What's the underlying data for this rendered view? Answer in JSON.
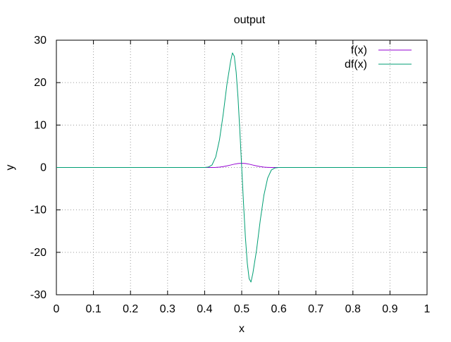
{
  "chart_data": {
    "type": "line",
    "title": "output",
    "xlabel": "x",
    "ylabel": "y",
    "xlim": [
      0,
      1
    ],
    "ylim": [
      -30,
      30
    ],
    "grid": true,
    "legend_position": "top-right",
    "x_ticks": [
      0,
      0.1,
      0.2,
      0.3,
      0.4,
      0.5,
      0.6,
      0.7,
      0.8,
      0.9,
      1
    ],
    "x_tick_labels": [
      "0",
      "0.1",
      "0.2",
      "0.3",
      "0.4",
      "0.5",
      "0.6",
      "0.7",
      "0.8",
      "0.9",
      "1"
    ],
    "y_ticks": [
      -30,
      -20,
      -10,
      0,
      10,
      20,
      30
    ],
    "y_tick_labels": [
      "-30",
      "-20",
      "-10",
      "0",
      "10",
      "20",
      "30"
    ],
    "series": [
      {
        "name": "f(x)",
        "color": "#9400d3",
        "points": [
          [
            0,
            0
          ],
          [
            0.4,
            0
          ],
          [
            0.41,
            0
          ],
          [
            0.42,
            0.01
          ],
          [
            0.43,
            0.03
          ],
          [
            0.44,
            0.09
          ],
          [
            0.45,
            0.2
          ],
          [
            0.46,
            0.37
          ],
          [
            0.47,
            0.57
          ],
          [
            0.48,
            0.78
          ],
          [
            0.49,
            0.94
          ],
          [
            0.5,
            1.0
          ],
          [
            0.51,
            0.94
          ],
          [
            0.52,
            0.78
          ],
          [
            0.53,
            0.57
          ],
          [
            0.54,
            0.37
          ],
          [
            0.55,
            0.2
          ],
          [
            0.56,
            0.09
          ],
          [
            0.57,
            0.03
          ],
          [
            0.58,
            0.01
          ],
          [
            0.59,
            0
          ],
          [
            0.6,
            0
          ],
          [
            1,
            0
          ]
        ]
      },
      {
        "name": "df(x)",
        "color": "#009e73",
        "points": [
          [
            0,
            0
          ],
          [
            0.4,
            0
          ],
          [
            0.41,
            0.1
          ],
          [
            0.42,
            0.6
          ],
          [
            0.43,
            2.5
          ],
          [
            0.44,
            6.5
          ],
          [
            0.45,
            12.5
          ],
          [
            0.46,
            19.5
          ],
          [
            0.47,
            25.0
          ],
          [
            0.475,
            27.0
          ],
          [
            0.48,
            26.2
          ],
          [
            0.485,
            22.5
          ],
          [
            0.49,
            16.5
          ],
          [
            0.495,
            8.6
          ],
          [
            0.5,
            0
          ],
          [
            0.505,
            -8.6
          ],
          [
            0.51,
            -16.5
          ],
          [
            0.515,
            -22.5
          ],
          [
            0.52,
            -26.2
          ],
          [
            0.525,
            -27.0
          ],
          [
            0.53,
            -25.0
          ],
          [
            0.54,
            -19.5
          ],
          [
            0.55,
            -12.5
          ],
          [
            0.56,
            -6.5
          ],
          [
            0.57,
            -2.5
          ],
          [
            0.58,
            -0.6
          ],
          [
            0.59,
            -0.1
          ],
          [
            0.6,
            0
          ],
          [
            1,
            0
          ]
        ]
      }
    ]
  }
}
